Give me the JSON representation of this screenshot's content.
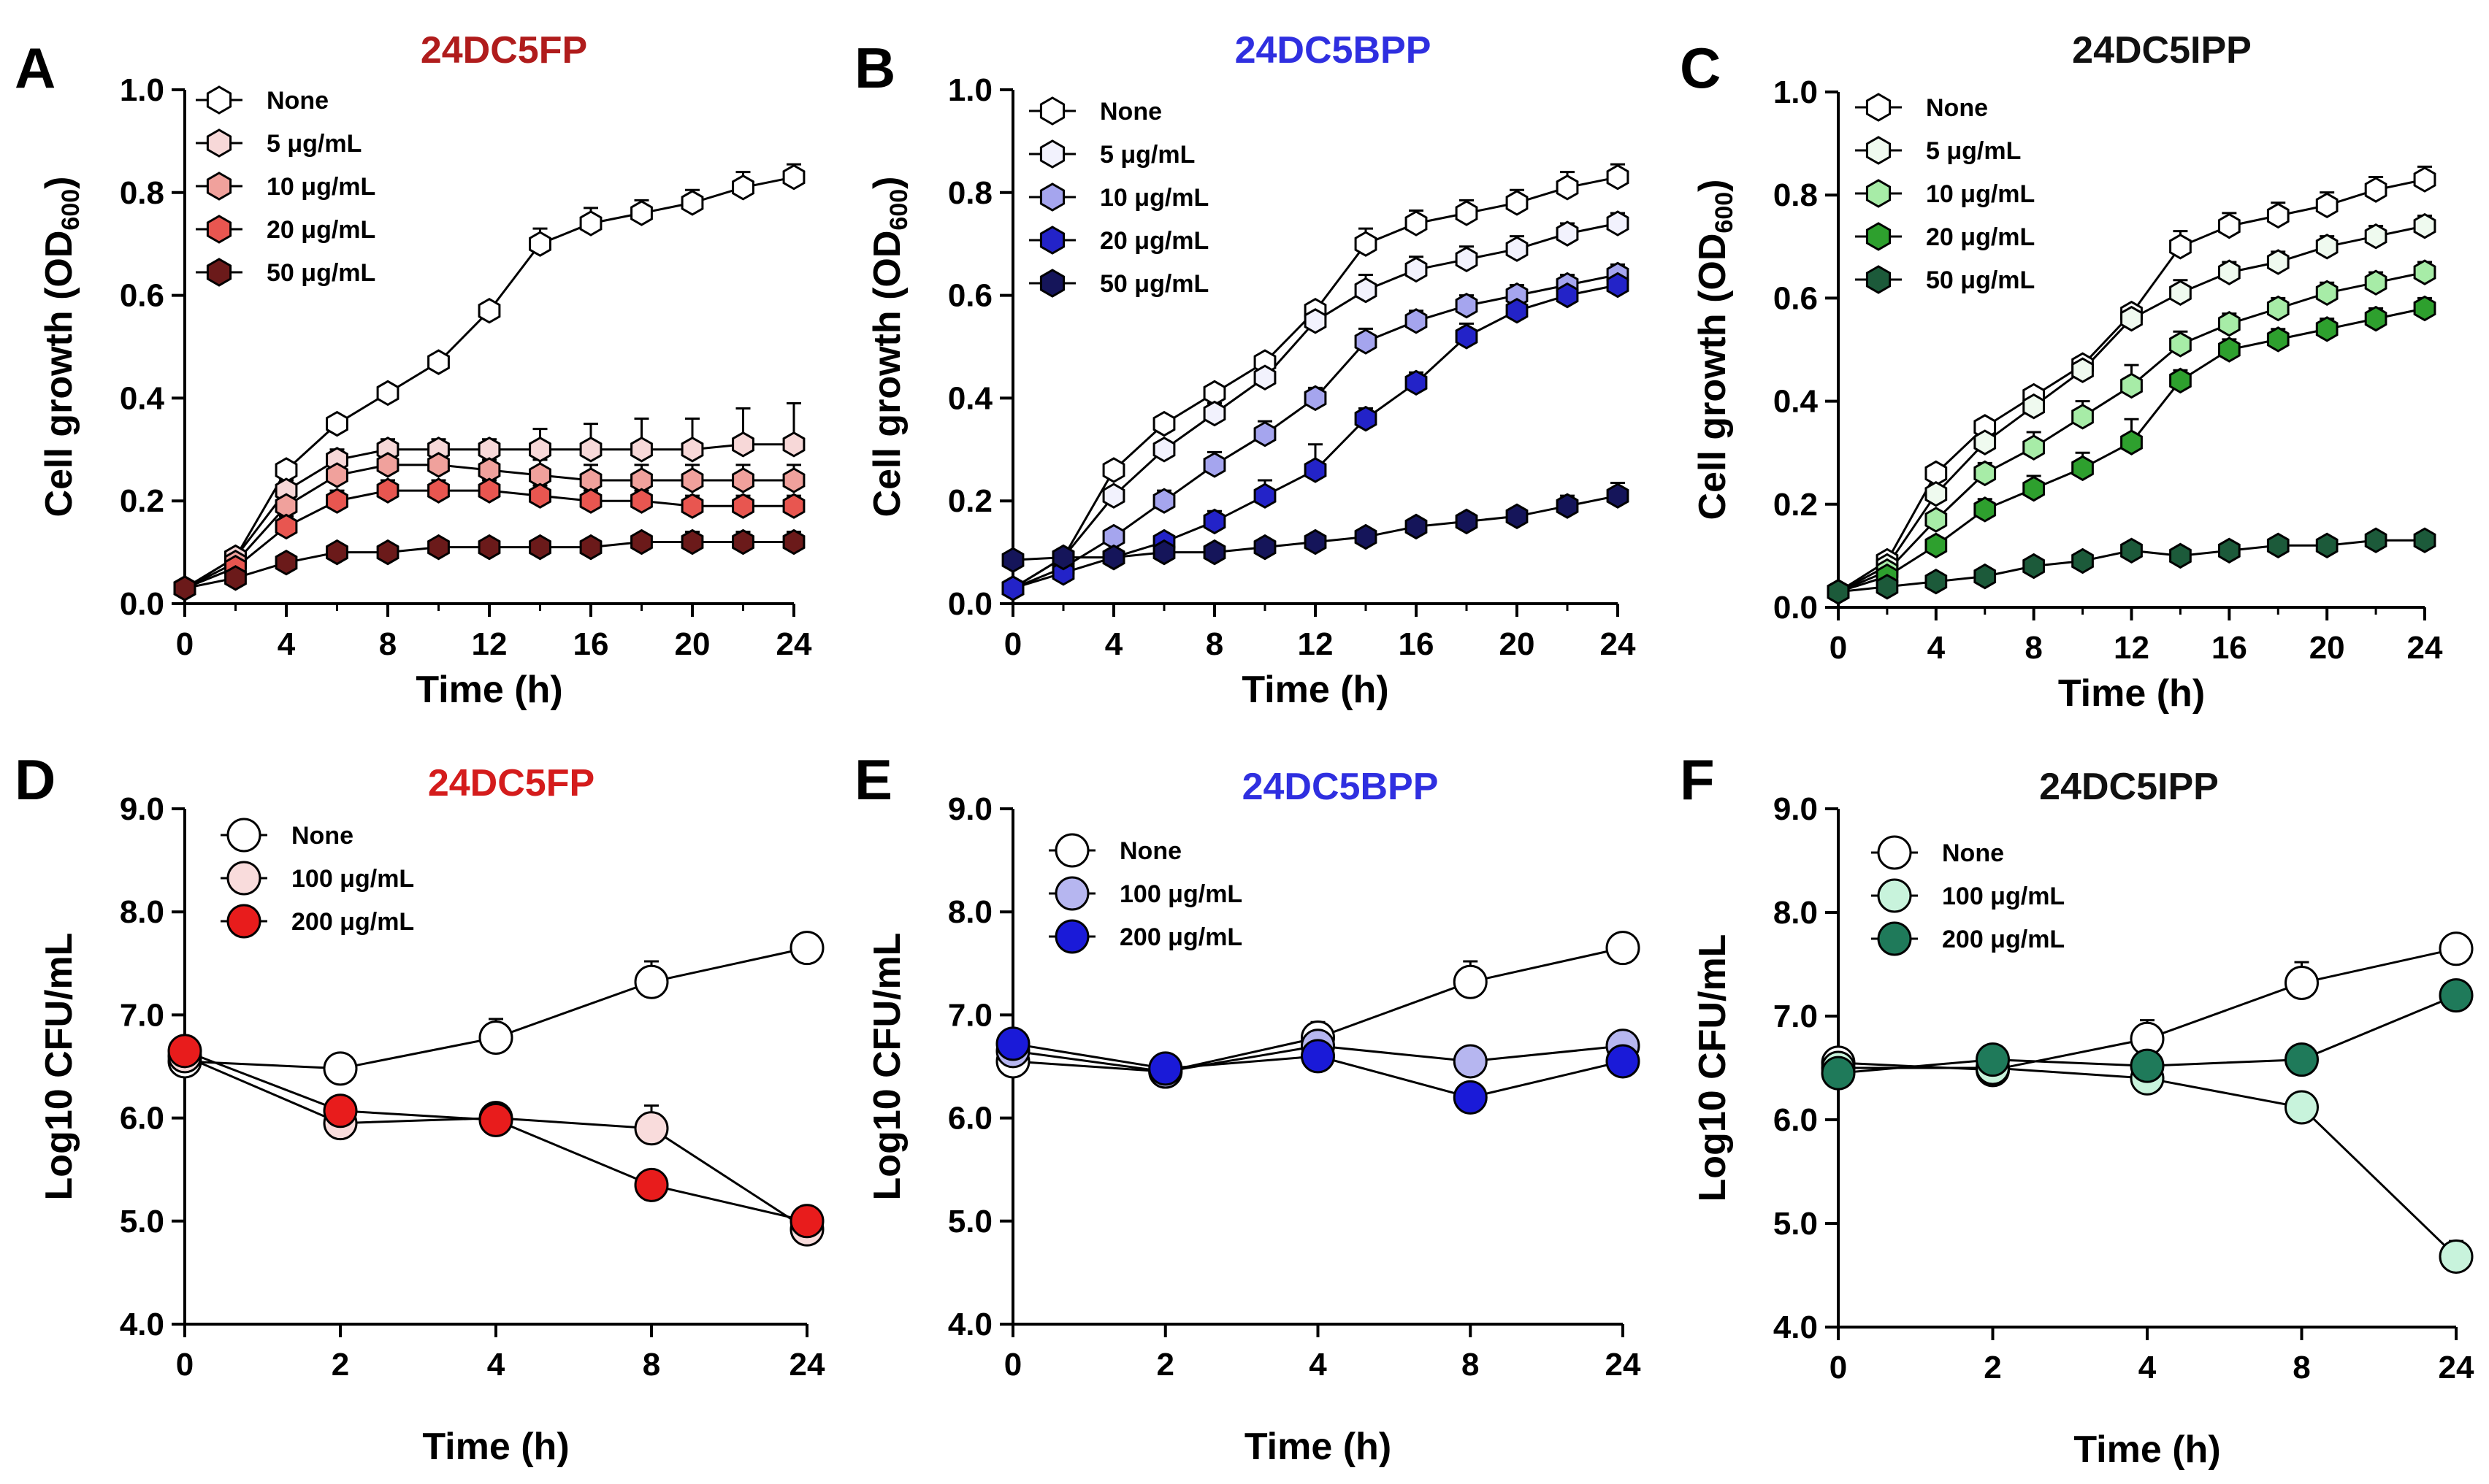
{
  "chart_data": [
    {
      "panel": "A",
      "title": "24DC5FP",
      "title_color": "#b01c1c",
      "type": "line",
      "xlabel": "Time (h)",
      "ylabel": "Cell growth (OD600)",
      "xlim": [
        0,
        24
      ],
      "ylim": [
        0,
        1.0
      ],
      "xticks": [
        0,
        4,
        8,
        12,
        16,
        20,
        24
      ],
      "xtick_labels": [
        "0",
        "4",
        "8",
        "12",
        "16",
        "20",
        "24"
      ],
      "yticks": [
        0.0,
        0.2,
        0.4,
        0.6,
        0.8,
        1.0
      ],
      "ytick_labels": [
        "0.0",
        "0.2",
        "0.4",
        "0.6",
        "0.8",
        "1.0"
      ],
      "marker": "hexagon",
      "legend_position": "top-left",
      "x": [
        0,
        2,
        4,
        6,
        8,
        10,
        12,
        14,
        16,
        18,
        20,
        22,
        24
      ],
      "series": [
        {
          "name": "None",
          "color": "#ffffff",
          "values": [
            0.03,
            0.09,
            0.26,
            0.35,
            0.41,
            0.47,
            0.57,
            0.7,
            0.74,
            0.76,
            0.78,
            0.81,
            0.83
          ],
          "errors": [
            0.005,
            0.01,
            0.015,
            0.015,
            0.015,
            0.015,
            0.015,
            0.03,
            0.03,
            0.025,
            0.025,
            0.03,
            0.025
          ]
        },
        {
          "name": "5 μg/mL",
          "color": "#f7d8d8",
          "values": [
            0.03,
            0.09,
            0.22,
            0.28,
            0.3,
            0.3,
            0.3,
            0.3,
            0.3,
            0.3,
            0.3,
            0.31,
            0.31
          ],
          "errors": [
            0.005,
            0.01,
            0.02,
            0.02,
            0.02,
            0.02,
            0.02,
            0.04,
            0.05,
            0.06,
            0.06,
            0.07,
            0.08
          ]
        },
        {
          "name": "10 μg/mL",
          "color": "#f0a19c",
          "values": [
            0.03,
            0.08,
            0.19,
            0.25,
            0.27,
            0.27,
            0.26,
            0.25,
            0.24,
            0.24,
            0.24,
            0.24,
            0.24
          ],
          "errors": [
            0.005,
            0.01,
            0.02,
            0.02,
            0.02,
            0.02,
            0.02,
            0.03,
            0.03,
            0.03,
            0.03,
            0.03,
            0.03
          ]
        },
        {
          "name": "20 μg/mL",
          "color": "#e85650",
          "values": [
            0.03,
            0.07,
            0.15,
            0.2,
            0.22,
            0.22,
            0.22,
            0.21,
            0.2,
            0.2,
            0.19,
            0.19,
            0.19
          ],
          "errors": [
            0.005,
            0.01,
            0.02,
            0.02,
            0.02,
            0.02,
            0.02,
            0.02,
            0.02,
            0.02,
            0.02,
            0.02,
            0.02
          ]
        },
        {
          "name": "50 μg/mL",
          "color": "#6b1a1a",
          "values": [
            0.03,
            0.05,
            0.08,
            0.1,
            0.1,
            0.11,
            0.11,
            0.11,
            0.11,
            0.12,
            0.12,
            0.12,
            0.12
          ],
          "errors": [
            0.005,
            0.005,
            0.005,
            0.005,
            0.005,
            0.01,
            0.01,
            0.01,
            0.01,
            0.015,
            0.02,
            0.02,
            0.02
          ]
        }
      ]
    },
    {
      "panel": "B",
      "title": "24DC5BPP",
      "title_color": "#2f2fe0",
      "type": "line",
      "xlabel": "Time (h)",
      "ylabel": "Cell growth (OD600)",
      "xlim": [
        0,
        24
      ],
      "ylim": [
        0,
        1.0
      ],
      "xticks": [
        0,
        4,
        8,
        12,
        16,
        20,
        24
      ],
      "xtick_labels": [
        "0",
        "4",
        "8",
        "12",
        "16",
        "20",
        "24"
      ],
      "yticks": [
        0.0,
        0.2,
        0.4,
        0.6,
        0.8,
        1.0
      ],
      "ytick_labels": [
        "0.0",
        "0.2",
        "0.4",
        "0.6",
        "0.8",
        "1.0"
      ],
      "marker": "hexagon",
      "legend_position": "top-left",
      "x": [
        0,
        2,
        4,
        6,
        8,
        10,
        12,
        14,
        16,
        18,
        20,
        22,
        24
      ],
      "series": [
        {
          "name": "None",
          "color": "#ffffff",
          "values": [
            0.03,
            0.09,
            0.26,
            0.35,
            0.41,
            0.47,
            0.57,
            0.7,
            0.74,
            0.76,
            0.78,
            0.81,
            0.83
          ],
          "errors": [
            0.005,
            0.01,
            0.015,
            0.015,
            0.015,
            0.015,
            0.015,
            0.03,
            0.025,
            0.025,
            0.025,
            0.03,
            0.025
          ]
        },
        {
          "name": "5 μg/mL",
          "color": "#f2f2fd",
          "values": [
            0.03,
            0.09,
            0.21,
            0.3,
            0.37,
            0.44,
            0.55,
            0.61,
            0.65,
            0.67,
            0.69,
            0.72,
            0.74
          ],
          "errors": [
            0.005,
            0.01,
            0.015,
            0.015,
            0.02,
            0.02,
            0.02,
            0.03,
            0.025,
            0.025,
            0.025,
            0.02,
            0.02
          ]
        },
        {
          "name": "10 μg/mL",
          "color": "#a5a5ee",
          "values": [
            0.03,
            0.07,
            0.13,
            0.2,
            0.27,
            0.33,
            0.4,
            0.51,
            0.55,
            0.58,
            0.6,
            0.62,
            0.64
          ],
          "errors": [
            0.005,
            0.01,
            0.015,
            0.02,
            0.025,
            0.025,
            0.02,
            0.025,
            0.02,
            0.02,
            0.02,
            0.02,
            0.02
          ]
        },
        {
          "name": "20 μg/mL",
          "color": "#2323c8",
          "values": [
            0.03,
            0.06,
            0.09,
            0.12,
            0.16,
            0.21,
            0.26,
            0.36,
            0.43,
            0.52,
            0.57,
            0.6,
            0.62
          ],
          "errors": [
            0.005,
            0.01,
            0.01,
            0.01,
            0.02,
            0.03,
            0.05,
            0.02,
            0.02,
            0.025,
            0.025,
            0.02,
            0.02
          ]
        },
        {
          "name": "50 μg/mL",
          "color": "#15155a",
          "values": [
            0.085,
            0.09,
            0.09,
            0.1,
            0.1,
            0.11,
            0.12,
            0.13,
            0.15,
            0.16,
            0.17,
            0.19,
            0.21
          ],
          "errors": [
            0.005,
            0.005,
            0.005,
            0.005,
            0.005,
            0.005,
            0.005,
            0.005,
            0.01,
            0.015,
            0.015,
            0.02,
            0.025
          ]
        }
      ]
    },
    {
      "panel": "C",
      "title": "24DC5IPP",
      "title_color": "#111111",
      "type": "line",
      "xlabel": "Time (h)",
      "ylabel": "Cell growth (OD600)",
      "xlim": [
        0,
        24
      ],
      "ylim": [
        0,
        1.0
      ],
      "xticks": [
        0,
        4,
        8,
        12,
        16,
        20,
        24
      ],
      "xtick_labels": [
        "0",
        "4",
        "8",
        "12",
        "16",
        "20",
        "24"
      ],
      "yticks": [
        0.0,
        0.2,
        0.4,
        0.6,
        0.8,
        1.0
      ],
      "ytick_labels": [
        "0.0",
        "0.2",
        "0.4",
        "0.6",
        "0.8",
        "1.0"
      ],
      "marker": "hexagon",
      "legend_position": "top-left",
      "x": [
        0,
        2,
        4,
        6,
        8,
        10,
        12,
        14,
        16,
        18,
        20,
        22,
        24
      ],
      "series": [
        {
          "name": "None",
          "color": "#ffffff",
          "values": [
            0.03,
            0.09,
            0.26,
            0.35,
            0.41,
            0.47,
            0.57,
            0.7,
            0.74,
            0.76,
            0.78,
            0.81,
            0.83
          ],
          "errors": [
            0.005,
            0.01,
            0.015,
            0.015,
            0.015,
            0.015,
            0.015,
            0.03,
            0.025,
            0.025,
            0.025,
            0.025,
            0.025
          ]
        },
        {
          "name": "5 μg/mL",
          "color": "#effaef",
          "values": [
            0.03,
            0.08,
            0.22,
            0.32,
            0.39,
            0.46,
            0.56,
            0.61,
            0.65,
            0.67,
            0.7,
            0.72,
            0.74
          ],
          "errors": [
            0.005,
            0.01,
            0.015,
            0.015,
            0.02,
            0.02,
            0.02,
            0.025,
            0.02,
            0.02,
            0.02,
            0.02,
            0.02
          ]
        },
        {
          "name": "10 μg/mL",
          "color": "#a7eca7",
          "values": [
            0.03,
            0.07,
            0.17,
            0.26,
            0.31,
            0.37,
            0.43,
            0.51,
            0.55,
            0.58,
            0.61,
            0.63,
            0.65
          ],
          "errors": [
            0.005,
            0.01,
            0.015,
            0.02,
            0.03,
            0.03,
            0.04,
            0.025,
            0.02,
            0.02,
            0.02,
            0.02,
            0.02
          ]
        },
        {
          "name": "20 μg/mL",
          "color": "#2ea02e",
          "values": [
            0.03,
            0.06,
            0.12,
            0.19,
            0.23,
            0.27,
            0.32,
            0.44,
            0.5,
            0.52,
            0.54,
            0.56,
            0.58
          ],
          "errors": [
            0.005,
            0.01,
            0.015,
            0.02,
            0.025,
            0.03,
            0.045,
            0.02,
            0.02,
            0.02,
            0.02,
            0.02,
            0.02
          ]
        },
        {
          "name": "50 μg/mL",
          "color": "#1c5a3a",
          "values": [
            0.03,
            0.04,
            0.05,
            0.06,
            0.08,
            0.09,
            0.11,
            0.1,
            0.11,
            0.12,
            0.12,
            0.13,
            0.13
          ],
          "errors": [
            0.005,
            0.005,
            0.005,
            0.005,
            0.005,
            0.01,
            0.01,
            0.005,
            0.005,
            0.005,
            0.005,
            0.005,
            0.005
          ]
        }
      ]
    },
    {
      "panel": "D",
      "title": "24DC5FP",
      "title_color": "#d41c1c",
      "type": "line",
      "xlabel": "Time (h)",
      "ylabel": "Log10 CFU/mL",
      "x_type": "categorical",
      "ylim": [
        4.0,
        9.0
      ],
      "categories": [
        "0",
        "2",
        "4",
        "8",
        "24"
      ],
      "yticks": [
        4.0,
        5.0,
        6.0,
        7.0,
        8.0,
        9.0
      ],
      "ytick_labels": [
        "4.0",
        "5.0",
        "6.0",
        "7.0",
        "8.0",
        "9.0"
      ],
      "marker": "circle",
      "legend_position": "top-left",
      "series": [
        {
          "name": "None",
          "color": "#ffffff",
          "values": [
            6.55,
            6.48,
            6.78,
            7.32,
            7.65
          ],
          "errors": [
            0.03,
            0.05,
            0.18,
            0.2,
            0.05
          ]
        },
        {
          "name": "100 μg/mL",
          "color": "#f9dcdc",
          "values": [
            6.6,
            5.95,
            6.0,
            5.9,
            4.92
          ],
          "errors": [
            0.05,
            0.05,
            0.12,
            0.22,
            0.18
          ]
        },
        {
          "name": "200 μg/mL",
          "color": "#e81c1c",
          "values": [
            6.65,
            6.07,
            5.98,
            5.35,
            5.0
          ],
          "errors": [
            0.05,
            0.05,
            0.08,
            0.05,
            0.05
          ]
        }
      ]
    },
    {
      "panel": "E",
      "title": "24DC5BPP",
      "title_color": "#2f2fe0",
      "type": "line",
      "xlabel": "Time (h)",
      "ylabel": "Log10 CFU/mL",
      "x_type": "categorical",
      "ylim": [
        4.0,
        9.0
      ],
      "categories": [
        "0",
        "2",
        "4",
        "8",
        "24"
      ],
      "yticks": [
        4.0,
        5.0,
        6.0,
        7.0,
        8.0,
        9.0
      ],
      "ytick_labels": [
        "4.0",
        "5.0",
        "6.0",
        "7.0",
        "8.0",
        "9.0"
      ],
      "marker": "circle",
      "legend_position": "top-left",
      "series": [
        {
          "name": "None",
          "color": "#ffffff",
          "values": [
            6.55,
            6.45,
            6.78,
            7.32,
            7.65
          ],
          "errors": [
            0.03,
            0.05,
            0.15,
            0.2,
            0.05
          ]
        },
        {
          "name": "100 μg/mL",
          "color": "#b6b6f0",
          "values": [
            6.65,
            6.45,
            6.7,
            6.55,
            6.7
          ],
          "errors": [
            0.05,
            0.05,
            0.1,
            0.05,
            0.12
          ]
        },
        {
          "name": "200 μg/mL",
          "color": "#1a1ad8",
          "values": [
            6.72,
            6.48,
            6.6,
            6.2,
            6.55
          ],
          "errors": [
            0.05,
            0.05,
            0.08,
            0.05,
            0.25
          ]
        }
      ]
    },
    {
      "panel": "F",
      "title": "24DC5IPP",
      "title_color": "#111111",
      "type": "line",
      "xlabel": "Time (h)",
      "ylabel": "Log10 CFU/mL",
      "x_type": "categorical",
      "ylim": [
        4.0,
        9.0
      ],
      "categories": [
        "0",
        "2",
        "4",
        "8",
        "24"
      ],
      "yticks": [
        4.0,
        5.0,
        6.0,
        7.0,
        8.0,
        9.0
      ],
      "ytick_labels": [
        "4.0",
        "5.0",
        "6.0",
        "7.0",
        "8.0",
        "9.0"
      ],
      "marker": "circle",
      "legend_position": "top-left",
      "series": [
        {
          "name": "None",
          "color": "#ffffff",
          "values": [
            6.55,
            6.48,
            6.78,
            7.32,
            7.65
          ],
          "errors": [
            0.03,
            0.05,
            0.18,
            0.2,
            0.05
          ]
        },
        {
          "name": "100 μg/mL",
          "color": "#c8f3dc",
          "values": [
            6.5,
            6.5,
            6.4,
            6.12,
            4.68
          ],
          "errors": [
            0.05,
            0.05,
            0.08,
            0.05,
            0.15
          ]
        },
        {
          "name": "200 μg/mL",
          "color": "#1f7a5a",
          "values": [
            6.45,
            6.58,
            6.52,
            6.58,
            7.2
          ],
          "errors": [
            0.05,
            0.05,
            0.05,
            0.05,
            0.05
          ]
        }
      ]
    }
  ]
}
